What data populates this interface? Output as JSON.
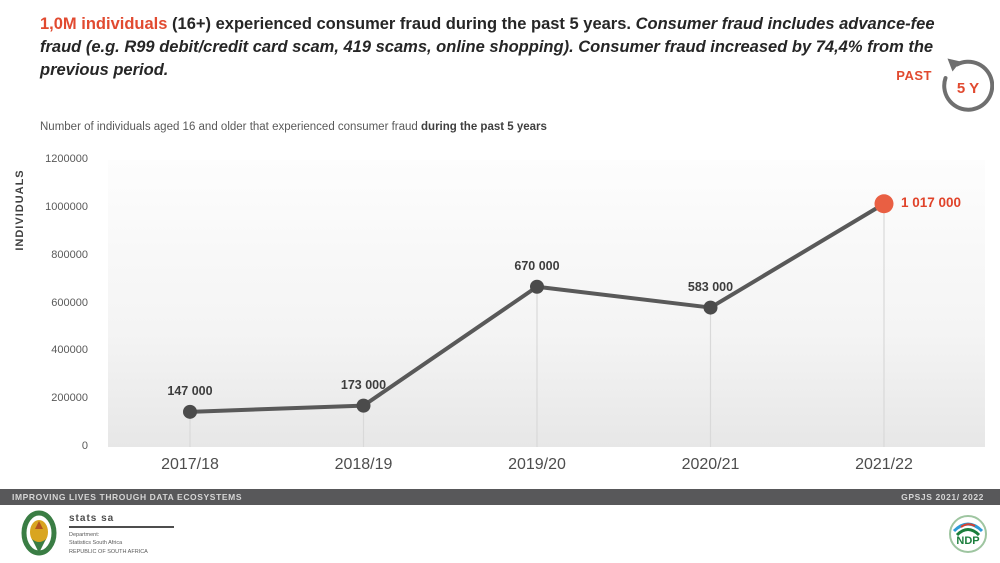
{
  "header": {
    "title_highlight": "1,0M individuals",
    "title_rest": " (16+) experienced consumer fraud during the past 5 years. ",
    "title_italic": "Consumer fraud includes advance-fee fraud (e.g. R99 debit/credit card scam, 419 scams, online shopping). Consumer fraud increased by 74,4% from the previous period.",
    "past_label": "PAST",
    "past_years": "5 Y"
  },
  "subtitle": {
    "text": "Number of individuals aged 16 and older that experienced consumer fraud ",
    "bold": "during the past 5 years"
  },
  "chart_data": {
    "type": "line",
    "categories": [
      "2017/18",
      "2018/19",
      "2019/20",
      "2020/21",
      "2021/22"
    ],
    "values": [
      147000,
      173000,
      670000,
      583000,
      1017000
    ],
    "point_labels": [
      "147 000",
      "173 000",
      "670 000",
      "583 000",
      "1 017 000"
    ],
    "title": "Number of individuals aged 16 and older that experienced consumer fraud during the past 5 years",
    "xlabel": "",
    "ylabel": "INDIVIDUALS",
    "ylim": [
      0,
      1200000
    ],
    "yticks": [
      0,
      200000,
      400000,
      600000,
      800000,
      1000000,
      1200000
    ],
    "ytick_labels": [
      "0",
      "200000",
      "400000",
      "600000",
      "800000",
      "1000000",
      "1200000"
    ],
    "grid": "drop-lines-only",
    "legend": "none",
    "line_color": "#595959",
    "marker_color": "#4b4b4b",
    "highlight_color": "#e95f43",
    "highlight_label_color": "#e0432a",
    "highlight_index": 4
  },
  "footer": {
    "left": "IMPROVING LIVES THROUGH DATA ECOSYSTEMS",
    "right": "GPSJS 2021/ 2022"
  },
  "logos": {
    "stats_sa": {
      "name": "stats sa",
      "line1": "Department:",
      "line2": "Statistics South Africa",
      "line3": "REPUBLIC OF SOUTH AFRICA"
    },
    "ndp": "NDP"
  }
}
